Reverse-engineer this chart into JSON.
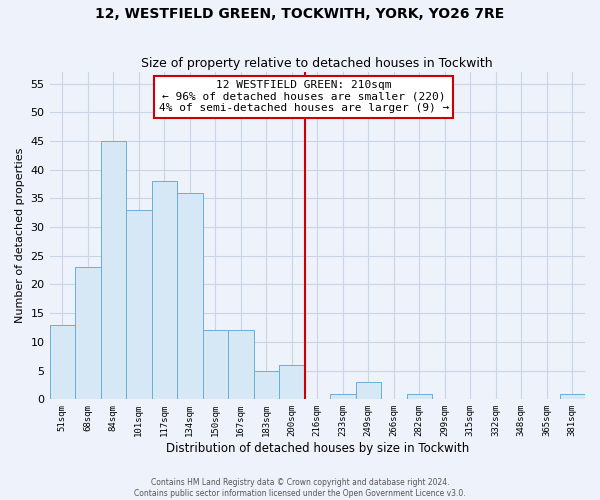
{
  "title": "12, WESTFIELD GREEN, TOCKWITH, YORK, YO26 7RE",
  "subtitle": "Size of property relative to detached houses in Tockwith",
  "xlabel": "Distribution of detached houses by size in Tockwith",
  "ylabel": "Number of detached properties",
  "bar_labels": [
    "51sqm",
    "68sqm",
    "84sqm",
    "101sqm",
    "117sqm",
    "134sqm",
    "150sqm",
    "167sqm",
    "183sqm",
    "200sqm",
    "216sqm",
    "233sqm",
    "249sqm",
    "266sqm",
    "282sqm",
    "299sqm",
    "315sqm",
    "332sqm",
    "348sqm",
    "365sqm",
    "381sqm"
  ],
  "bar_values": [
    13,
    23,
    45,
    33,
    38,
    36,
    12,
    12,
    5,
    6,
    0,
    1,
    3,
    0,
    1,
    0,
    0,
    0,
    0,
    0,
    1
  ],
  "bar_color": "#d6e8f5",
  "bar_edge_color": "#6baed6",
  "vline_color": "#cc0000",
  "annotation_title": "12 WESTFIELD GREEN: 210sqm",
  "annotation_line1": "← 96% of detached houses are smaller (220)",
  "annotation_line2": "4% of semi-detached houses are larger (9) →",
  "annotation_box_color": "white",
  "annotation_box_edge": "#cc0000",
  "ylim": [
    0,
    57
  ],
  "yticks": [
    0,
    5,
    10,
    15,
    20,
    25,
    30,
    35,
    40,
    45,
    50,
    55
  ],
  "footer_line1": "Contains HM Land Registry data © Crown copyright and database right 2024.",
  "footer_line2": "Contains public sector information licensed under the Open Government Licence v3.0.",
  "bg_color": "#eef2fa",
  "grid_color": "#c8d4e8",
  "title_fontsize": 10,
  "subtitle_fontsize": 9,
  "vline_x": 9.5
}
